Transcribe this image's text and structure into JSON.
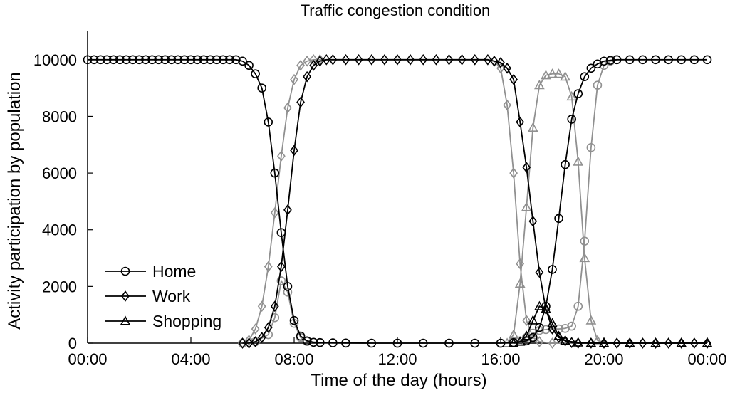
{
  "chart_data": {
    "type": "line",
    "title": "Traffic congestion condition",
    "xlabel": "Time of the day (hours)",
    "ylabel": "Activity participation by population",
    "xlim": [
      0,
      24
    ],
    "ylim": [
      0,
      11000
    ],
    "x_ticks": [
      0,
      4,
      8,
      12,
      16,
      20,
      24
    ],
    "x_tick_labels": [
      "00:00",
      "04:00",
      "08:00",
      "12:00",
      "16:00",
      "20:00",
      "00:00"
    ],
    "y_ticks": [
      0,
      2000,
      4000,
      6000,
      8000,
      10000
    ],
    "y_tick_labels": [
      "0",
      "2000",
      "4000",
      "6000",
      "8000",
      "10000"
    ],
    "grid": false,
    "legend_position": "bottom-left",
    "legend": [
      "Home",
      "Work",
      "Shopping"
    ],
    "series": [
      {
        "name": "Home",
        "marker": "circle",
        "color": "#000000",
        "points": [
          [
            0,
            10000
          ],
          [
            0.25,
            10000
          ],
          [
            0.5,
            10000
          ],
          [
            0.75,
            10000
          ],
          [
            1,
            10000
          ],
          [
            1.25,
            10000
          ],
          [
            1.5,
            10000
          ],
          [
            1.75,
            10000
          ],
          [
            2,
            10000
          ],
          [
            2.25,
            10000
          ],
          [
            2.5,
            10000
          ],
          [
            2.75,
            10000
          ],
          [
            3,
            10000
          ],
          [
            3.25,
            10000
          ],
          [
            3.5,
            10000
          ],
          [
            3.75,
            10000
          ],
          [
            4,
            10000
          ],
          [
            4.25,
            10000
          ],
          [
            4.5,
            10000
          ],
          [
            4.75,
            10000
          ],
          [
            5,
            10000
          ],
          [
            5.25,
            10000
          ],
          [
            5.5,
            10000
          ],
          [
            5.75,
            10000
          ],
          [
            6,
            9950
          ],
          [
            6.25,
            9800
          ],
          [
            6.5,
            9500
          ],
          [
            6.75,
            9000
          ],
          [
            7,
            7800
          ],
          [
            7.25,
            6000
          ],
          [
            7.5,
            3900
          ],
          [
            7.75,
            2000
          ],
          [
            8,
            800
          ],
          [
            8.25,
            250
          ],
          [
            8.5,
            80
          ],
          [
            8.75,
            30
          ],
          [
            9,
            20
          ],
          [
            9.5,
            10
          ],
          [
            10,
            5
          ],
          [
            11,
            0
          ],
          [
            12,
            0
          ],
          [
            13,
            0
          ],
          [
            14,
            0
          ],
          [
            15,
            0
          ],
          [
            16,
            0
          ],
          [
            16.5,
            20
          ],
          [
            17,
            80
          ],
          [
            17.25,
            200
          ],
          [
            17.5,
            550
          ],
          [
            17.75,
            1300
          ],
          [
            18,
            2600
          ],
          [
            18.25,
            4400
          ],
          [
            18.5,
            6300
          ],
          [
            18.75,
            7900
          ],
          [
            19,
            8800
          ],
          [
            19.25,
            9400
          ],
          [
            19.5,
            9700
          ],
          [
            19.75,
            9850
          ],
          [
            20,
            9950
          ],
          [
            20.25,
            9980
          ],
          [
            20.5,
            10000
          ],
          [
            21,
            10000
          ],
          [
            21.5,
            10000
          ],
          [
            22,
            10000
          ],
          [
            22.5,
            10000
          ],
          [
            23,
            10000
          ],
          [
            23.5,
            10000
          ],
          [
            24,
            10000
          ]
        ]
      },
      {
        "name": "Work",
        "marker": "diamond",
        "color": "#000000",
        "points": [
          [
            6,
            0
          ],
          [
            6.25,
            0
          ],
          [
            6.5,
            50
          ],
          [
            6.75,
            200
          ],
          [
            7,
            550
          ],
          [
            7.25,
            1300
          ],
          [
            7.5,
            2700
          ],
          [
            7.75,
            4700
          ],
          [
            8,
            6800
          ],
          [
            8.25,
            8500
          ],
          [
            8.5,
            9400
          ],
          [
            8.75,
            9800
          ],
          [
            9,
            9950
          ],
          [
            9.25,
            10000
          ],
          [
            9.5,
            10000
          ],
          [
            10,
            10000
          ],
          [
            10.5,
            10000
          ],
          [
            11,
            10000
          ],
          [
            11.5,
            10000
          ],
          [
            12,
            10000
          ],
          [
            12.5,
            10000
          ],
          [
            13,
            10000
          ],
          [
            13.5,
            10000
          ],
          [
            14,
            10000
          ],
          [
            14.5,
            10000
          ],
          [
            15,
            10000
          ],
          [
            15.5,
            10000
          ],
          [
            15.75,
            9950
          ],
          [
            16,
            9900
          ],
          [
            16.25,
            9700
          ],
          [
            16.5,
            9300
          ],
          [
            16.75,
            7800
          ],
          [
            17,
            6200
          ],
          [
            17.25,
            4300
          ],
          [
            17.5,
            2500
          ],
          [
            17.75,
            1200
          ],
          [
            18,
            500
          ],
          [
            18.25,
            200
          ],
          [
            18.5,
            80
          ],
          [
            18.75,
            20
          ],
          [
            19,
            0
          ],
          [
            19.5,
            0
          ],
          [
            20,
            0
          ],
          [
            20.5,
            0
          ],
          [
            21,
            0
          ],
          [
            21.5,
            0
          ],
          [
            22,
            0
          ],
          [
            22.5,
            0
          ],
          [
            23,
            0
          ],
          [
            23.5,
            0
          ],
          [
            24,
            0
          ]
        ]
      },
      {
        "name": "Shopping",
        "marker": "triangle",
        "color": "#000000",
        "points": [
          [
            16.5,
            0
          ],
          [
            16.75,
            50
          ],
          [
            17,
            250
          ],
          [
            17.25,
            800
          ],
          [
            17.5,
            1300
          ],
          [
            17.75,
            1200
          ],
          [
            18,
            700
          ],
          [
            18.25,
            250
          ],
          [
            18.5,
            80
          ],
          [
            19,
            20
          ],
          [
            19.5,
            5
          ],
          [
            20,
            0
          ],
          [
            21,
            0
          ],
          [
            22,
            0
          ],
          [
            23,
            0
          ],
          [
            24,
            0
          ]
        ]
      },
      {
        "name": "",
        "marker": "circle",
        "color": "#909090",
        "points": [
          [
            6,
            0
          ],
          [
            6.5,
            50
          ],
          [
            7,
            300
          ],
          [
            7.25,
            900
          ],
          [
            7.5,
            2200
          ],
          [
            7.75,
            1800
          ],
          [
            8,
            700
          ],
          [
            8.25,
            200
          ],
          [
            8.5,
            60
          ],
          [
            9,
            20
          ],
          [
            10,
            0
          ],
          [
            12,
            0
          ],
          [
            14,
            0
          ],
          [
            16,
            0
          ],
          [
            16.5,
            20
          ],
          [
            16.75,
            80
          ],
          [
            17,
            200
          ],
          [
            17.25,
            350
          ],
          [
            17.5,
            450
          ],
          [
            17.75,
            480
          ],
          [
            18,
            500
          ],
          [
            18.25,
            500
          ],
          [
            18.5,
            520
          ],
          [
            18.75,
            600
          ],
          [
            19,
            1300
          ],
          [
            19.25,
            3600
          ],
          [
            19.5,
            6900
          ],
          [
            19.75,
            9100
          ],
          [
            20,
            9800
          ],
          [
            20.25,
            9950
          ],
          [
            20.5,
            10000
          ]
        ]
      },
      {
        "name": "",
        "marker": "diamond",
        "color": "#909090",
        "points": [
          [
            6,
            0
          ],
          [
            6.25,
            100
          ],
          [
            6.5,
            500
          ],
          [
            6.75,
            1300
          ],
          [
            7,
            2700
          ],
          [
            7.25,
            4600
          ],
          [
            7.5,
            6600
          ],
          [
            7.75,
            8300
          ],
          [
            8,
            9300
          ],
          [
            8.25,
            9800
          ],
          [
            8.5,
            9950
          ],
          [
            8.75,
            10000
          ],
          [
            9,
            10000
          ],
          [
            15.5,
            10000
          ],
          [
            15.75,
            9950
          ],
          [
            16,
            9700
          ],
          [
            16.25,
            8400
          ],
          [
            16.5,
            6000
          ],
          [
            16.75,
            2800
          ],
          [
            17,
            800
          ],
          [
            17.25,
            200
          ],
          [
            17.5,
            50
          ],
          [
            18,
            0
          ],
          [
            19,
            0
          ],
          [
            20,
            0
          ],
          [
            21,
            0
          ],
          [
            22,
            0
          ],
          [
            23,
            0
          ],
          [
            24,
            0
          ]
        ]
      },
      {
        "name": "",
        "marker": "triangle",
        "color": "#909090",
        "points": [
          [
            16.25,
            0
          ],
          [
            16.5,
            300
          ],
          [
            16.75,
            2100
          ],
          [
            17,
            4800
          ],
          [
            17.25,
            7600
          ],
          [
            17.5,
            9100
          ],
          [
            17.75,
            9450
          ],
          [
            18,
            9500
          ],
          [
            18.25,
            9500
          ],
          [
            18.5,
            9400
          ],
          [
            18.75,
            8700
          ],
          [
            19,
            6400
          ],
          [
            19.25,
            3000
          ],
          [
            19.5,
            800
          ],
          [
            19.75,
            100
          ],
          [
            20,
            0
          ],
          [
            21,
            0
          ],
          [
            22,
            0
          ],
          [
            23,
            0
          ],
          [
            24,
            0
          ]
        ]
      }
    ]
  }
}
